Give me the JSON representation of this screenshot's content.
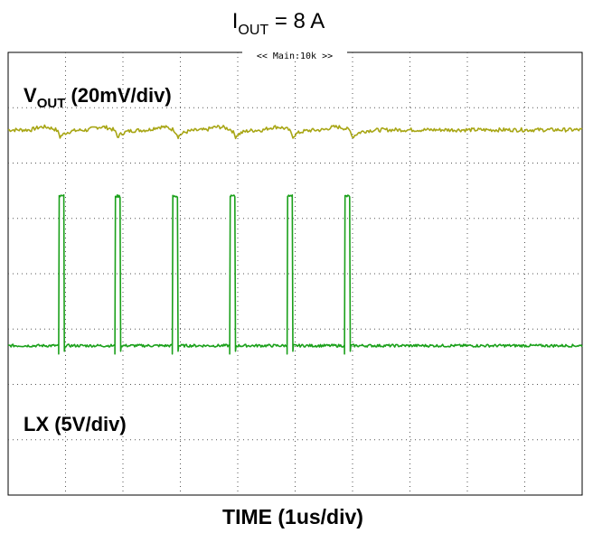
{
  "chart_data": {
    "type": "line",
    "title": {
      "main": "I",
      "sub": "OUT",
      "rest": " = 8 A"
    },
    "timebase": "<< Main:10k >>",
    "xlabel": "TIME (1us/div)",
    "grid": true,
    "divisions": {
      "x": 10,
      "y": 8
    },
    "xlim_div": [
      0,
      10
    ],
    "ylim_div": [
      0,
      8
    ],
    "series": [
      {
        "key": "vout",
        "name": {
          "main": "V",
          "sub": "OUT",
          "rest": " (20mV/div)"
        },
        "color": "#a8a615",
        "level_div": 6.6,
        "ripple_div": 0.15,
        "dip_times": [
          0.9,
          1.9,
          2.95,
          3.95,
          4.95,
          6.0
        ]
      },
      {
        "key": "lx",
        "name": "LX (5V/div)",
        "color": "#1aa01a",
        "low_div": 2.7,
        "high_div": 5.4,
        "pulses": [
          {
            "start": 0.88,
            "end": 0.98
          },
          {
            "start": 1.86,
            "end": 1.96
          },
          {
            "start": 2.86,
            "end": 2.96
          },
          {
            "start": 3.86,
            "end": 3.96
          },
          {
            "start": 4.86,
            "end": 4.96
          },
          {
            "start": 5.86,
            "end": 5.96
          }
        ]
      }
    ]
  }
}
